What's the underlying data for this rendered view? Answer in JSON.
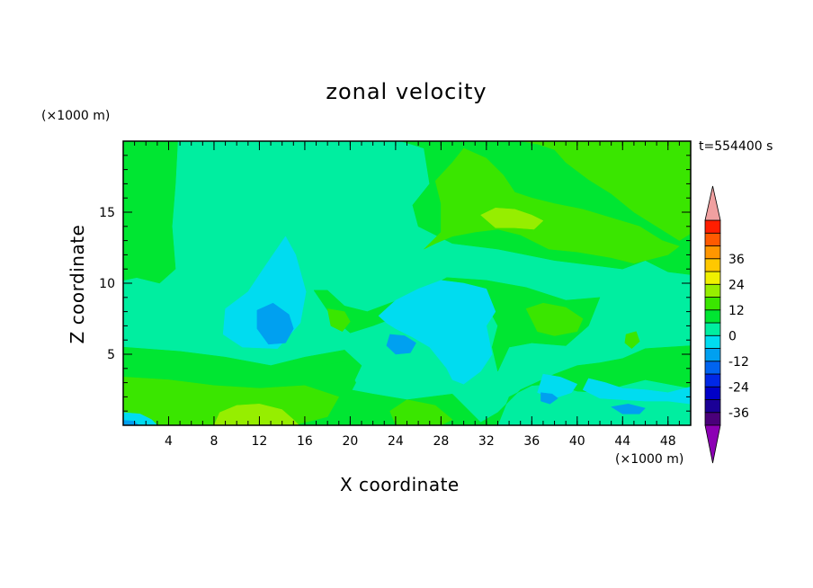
{
  "chart_data": {
    "type": "heatmap",
    "title": "zonal velocity",
    "xlabel": "X coordinate",
    "ylabel": "Z coordinate",
    "x_unit": "(×1000 m)",
    "y_unit": "(×1000 m)",
    "time_label": "t=554400 s",
    "xlim": [
      0,
      50
    ],
    "ylim": [
      0,
      20
    ],
    "x_ticks": [
      "4",
      "8",
      "12",
      "16",
      "20",
      "24",
      "28",
      "32",
      "36",
      "40",
      "44",
      "48"
    ],
    "y_ticks": [
      "5",
      "10",
      "15"
    ],
    "colorbar": {
      "labels": [
        "36",
        "24",
        "12",
        "0",
        "-12",
        "-24",
        "-36"
      ],
      "levels": [
        -42,
        -36,
        -30,
        -24,
        -18,
        -12,
        -6,
        0,
        6,
        12,
        18,
        24,
        30,
        36,
        42
      ],
      "colors_low_to_high": [
        "#4a007a",
        "#1a0096",
        "#0000c8",
        "#0028e6",
        "#0064f0",
        "#00a0f0",
        "#00dcf0",
        "#00eea0",
        "#00e632",
        "#3ae600",
        "#96ee00",
        "#f0f000",
        "#ffc800",
        "#ff9600",
        "#ff5a00",
        "#ff1e00"
      ],
      "under_color": "#8c00b4",
      "over_color": "#f0a0a0"
    },
    "regions": [
      {
        "level": 0,
        "points": [
          [
            0,
            0
          ],
          [
            50,
            0
          ],
          [
            50,
            20
          ],
          [
            0,
            20
          ]
        ]
      },
      {
        "level": 1,
        "points": [
          [
            0,
            20
          ],
          [
            4.8,
            20
          ],
          [
            4.6,
            17
          ],
          [
            4.3,
            14
          ],
          [
            4.6,
            11
          ],
          [
            3.2,
            10
          ],
          [
            1.2,
            10.4
          ],
          [
            0,
            10.2
          ]
        ]
      },
      {
        "level": 1,
        "points": [
          [
            24.5,
            20
          ],
          [
            26.5,
            19.5
          ],
          [
            27,
            17
          ],
          [
            25.5,
            15.5
          ],
          [
            26,
            14
          ],
          [
            29,
            12.8
          ],
          [
            33,
            12.4
          ],
          [
            38,
            11.6
          ],
          [
            42,
            11.2
          ],
          [
            44,
            11
          ],
          [
            46,
            11.6
          ],
          [
            48,
            10.8
          ],
          [
            50,
            10.6
          ],
          [
            50,
            20
          ]
        ]
      },
      {
        "level": 1,
        "points": [
          [
            0,
            5.5
          ],
          [
            5,
            5.2
          ],
          [
            9,
            4.8
          ],
          [
            13,
            4.2
          ],
          [
            16,
            4.8
          ],
          [
            19.5,
            5.3
          ],
          [
            21,
            4.2
          ],
          [
            20,
            2.5
          ],
          [
            22,
            2.2
          ],
          [
            25,
            1.8
          ],
          [
            29,
            2.2
          ],
          [
            31.5,
            0.2
          ],
          [
            33,
            0.9
          ],
          [
            35,
            2.5
          ],
          [
            38,
            3.6
          ],
          [
            40,
            4.2
          ],
          [
            42,
            4.4
          ],
          [
            44,
            4.7
          ],
          [
            46,
            5.4
          ],
          [
            50,
            5.6
          ],
          [
            50,
            2.6
          ],
          [
            46,
            3.2
          ],
          [
            44,
            2.8
          ],
          [
            42,
            2.3
          ],
          [
            40,
            2.4
          ],
          [
            38,
            2.9
          ],
          [
            36,
            2.8
          ],
          [
            34,
            2.0
          ],
          [
            33,
            0
          ],
          [
            0,
            0
          ]
        ]
      },
      {
        "level": 1,
        "points": [
          [
            16.8,
            9.5
          ],
          [
            18,
            9.5
          ],
          [
            19.5,
            8.4
          ],
          [
            21.5,
            8.0
          ],
          [
            23.5,
            8.6
          ],
          [
            26,
            9.3
          ],
          [
            28.5,
            10.4
          ],
          [
            32,
            10.2
          ],
          [
            35.5,
            9.7
          ],
          [
            39,
            8.8
          ],
          [
            42,
            9.0
          ],
          [
            41,
            7.0
          ],
          [
            39,
            5.6
          ],
          [
            36,
            5.8
          ],
          [
            34,
            5.5
          ],
          [
            33,
            3.8
          ],
          [
            32.5,
            5.5
          ],
          [
            33,
            7.0
          ],
          [
            32,
            8.5
          ],
          [
            30,
            9.0
          ],
          [
            28,
            8.8
          ],
          [
            26,
            8.2
          ],
          [
            24,
            7.6
          ],
          [
            22,
            7.0
          ],
          [
            20,
            6.5
          ],
          [
            18.5,
            7.5
          ]
        ]
      },
      {
        "level": 1,
        "points": [
          [
            17.5,
            4.2
          ],
          [
            19.5,
            4.5
          ],
          [
            20.5,
            3.0
          ],
          [
            19.5,
            1.5
          ],
          [
            18,
            1.0
          ],
          [
            17,
            2.5
          ]
        ]
      },
      {
        "level": 2,
        "points": [
          [
            30,
            20
          ],
          [
            35,
            20
          ],
          [
            36.5,
            19.8
          ],
          [
            38,
            19.4
          ],
          [
            39,
            18.5
          ],
          [
            41,
            17.3
          ],
          [
            43,
            16.3
          ],
          [
            45,
            15.0
          ],
          [
            47,
            14.0
          ],
          [
            49,
            13.0
          ],
          [
            50,
            13.5
          ],
          [
            50,
            20
          ]
        ]
      },
      {
        "level": 2,
        "points": [
          [
            26.5,
            12.4
          ],
          [
            28,
            13.6
          ],
          [
            28,
            15.6
          ],
          [
            27.5,
            17.2
          ],
          [
            29,
            18.5
          ],
          [
            30,
            19.5
          ],
          [
            32,
            18.8
          ],
          [
            33.5,
            17.6
          ],
          [
            34.5,
            16.4
          ],
          [
            36,
            16.0
          ],
          [
            38,
            15.6
          ],
          [
            40.5,
            15.2
          ],
          [
            43,
            14.6
          ],
          [
            45.5,
            14.0
          ],
          [
            47.5,
            13.0
          ],
          [
            49,
            12.6
          ],
          [
            48,
            12.0
          ],
          [
            45,
            11.4
          ],
          [
            43,
            11.8
          ],
          [
            40,
            12.2
          ],
          [
            37.5,
            12.4
          ],
          [
            35,
            13.4
          ],
          [
            33,
            13.8
          ],
          [
            31,
            13.6
          ],
          [
            29,
            13.3
          ],
          [
            27.5,
            12.8
          ]
        ]
      },
      {
        "level": 2,
        "points": [
          [
            35.5,
            8.2
          ],
          [
            37,
            8.6
          ],
          [
            39,
            8.3
          ],
          [
            40.5,
            7.5
          ],
          [
            40,
            6.6
          ],
          [
            38,
            6.3
          ],
          [
            36.5,
            6.6
          ]
        ]
      },
      {
        "level": 2,
        "points": [
          [
            18,
            8.2
          ],
          [
            19.5,
            8.0
          ],
          [
            20,
            7.3
          ],
          [
            19.3,
            6.6
          ],
          [
            18.3,
            7.0
          ]
        ]
      },
      {
        "level": 2,
        "points": [
          [
            44.3,
            6.4
          ],
          [
            45.2,
            6.6
          ],
          [
            45.5,
            5.9
          ],
          [
            44.8,
            5.4
          ],
          [
            44.2,
            5.8
          ]
        ]
      },
      {
        "level": 2,
        "points": [
          [
            0,
            3.4
          ],
          [
            4,
            3.2
          ],
          [
            8,
            2.8
          ],
          [
            12,
            2.6
          ],
          [
            16,
            2.8
          ],
          [
            19,
            2.0
          ],
          [
            18,
            0.6
          ],
          [
            15,
            0
          ],
          [
            0,
            0
          ]
        ]
      },
      {
        "level": 2,
        "points": [
          [
            25,
            1.8
          ],
          [
            27.5,
            1.4
          ],
          [
            29,
            0.4
          ],
          [
            28,
            0
          ],
          [
            24,
            0
          ],
          [
            23.5,
            1.0
          ]
        ]
      },
      {
        "level": 3,
        "points": [
          [
            31.5,
            14.8
          ],
          [
            32.8,
            15.3
          ],
          [
            34.5,
            15.2
          ],
          [
            36,
            14.8
          ],
          [
            37,
            14.4
          ],
          [
            36.2,
            13.8
          ],
          [
            34.5,
            13.9
          ],
          [
            32.8,
            13.9
          ]
        ]
      },
      {
        "level": 3,
        "points": [
          [
            8.5,
            0.9
          ],
          [
            10,
            1.4
          ],
          [
            12,
            1.5
          ],
          [
            14,
            1.1
          ],
          [
            15,
            0.4
          ],
          [
            15.5,
            0
          ],
          [
            8,
            0
          ]
        ]
      },
      {
        "level": -1,
        "points": [
          [
            9,
            8.2
          ],
          [
            11,
            9.4
          ],
          [
            12.5,
            11.2
          ],
          [
            14.3,
            13.3
          ],
          [
            15.2,
            12
          ],
          [
            16.1,
            9.4
          ],
          [
            15.6,
            7.2
          ],
          [
            13.6,
            5.4
          ],
          [
            10.5,
            5.5
          ],
          [
            8.8,
            6.4
          ]
        ]
      },
      {
        "level": -1,
        "points": [
          [
            22.5,
            7.7
          ],
          [
            24,
            8.8
          ],
          [
            26,
            9.6
          ],
          [
            28,
            10.2
          ],
          [
            30,
            10
          ],
          [
            32,
            9.6
          ],
          [
            32.8,
            8
          ],
          [
            32,
            7
          ],
          [
            32.5,
            5
          ],
          [
            31.5,
            3.8
          ],
          [
            30,
            2.9
          ],
          [
            29,
            3.2
          ],
          [
            28.5,
            4
          ],
          [
            27,
            5.5
          ],
          [
            25.5,
            6.2
          ],
          [
            24,
            6.8
          ],
          [
            23.2,
            7.2
          ]
        ]
      },
      {
        "level": -1,
        "points": [
          [
            37,
            3.6
          ],
          [
            38.5,
            3.4
          ],
          [
            40,
            2.9
          ],
          [
            39.5,
            2.3
          ],
          [
            38,
            1.9
          ],
          [
            36.5,
            2.3
          ]
        ]
      },
      {
        "level": -1,
        "points": [
          [
            41,
            3.3
          ],
          [
            42.5,
            3.0
          ],
          [
            44,
            2.6
          ],
          [
            46,
            2.5
          ],
          [
            48,
            2.3
          ],
          [
            50,
            2.7
          ],
          [
            50,
            1.5
          ],
          [
            48,
            1.7
          ],
          [
            46,
            1.7
          ],
          [
            44,
            1.8
          ],
          [
            42,
            1.9
          ],
          [
            40.5,
            2.5
          ]
        ]
      },
      {
        "level": -1,
        "points": [
          [
            0,
            0.9
          ],
          [
            1.5,
            0.8
          ],
          [
            2.5,
            0.4
          ],
          [
            3,
            0
          ],
          [
            0,
            0
          ]
        ]
      },
      {
        "level": -2,
        "points": [
          [
            11.8,
            8.1
          ],
          [
            13.2,
            8.6
          ],
          [
            14.6,
            7.8
          ],
          [
            15,
            6.8
          ],
          [
            14.3,
            5.8
          ],
          [
            12.8,
            5.7
          ],
          [
            11.8,
            6.8
          ]
        ]
      },
      {
        "level": -2,
        "points": [
          [
            23.5,
            6.4
          ],
          [
            24.8,
            6.3
          ],
          [
            25.8,
            5.8
          ],
          [
            25.3,
            5.1
          ],
          [
            24,
            5.0
          ],
          [
            23.2,
            5.6
          ]
        ]
      },
      {
        "level": -2,
        "points": [
          [
            36.8,
            2.3
          ],
          [
            37.8,
            2.2
          ],
          [
            38.3,
            1.9
          ],
          [
            37.6,
            1.5
          ],
          [
            36.8,
            1.7
          ]
        ]
      },
      {
        "level": -2,
        "points": [
          [
            0,
            0.35
          ],
          [
            0.9,
            0.3
          ],
          [
            1.4,
            0
          ],
          [
            0,
            0
          ]
        ]
      },
      {
        "level": -2,
        "points": [
          [
            43,
            1.3
          ],
          [
            44.5,
            1.5
          ],
          [
            46,
            1.2
          ],
          [
            45.5,
            0.8
          ],
          [
            44,
            0.8
          ]
        ]
      }
    ]
  }
}
